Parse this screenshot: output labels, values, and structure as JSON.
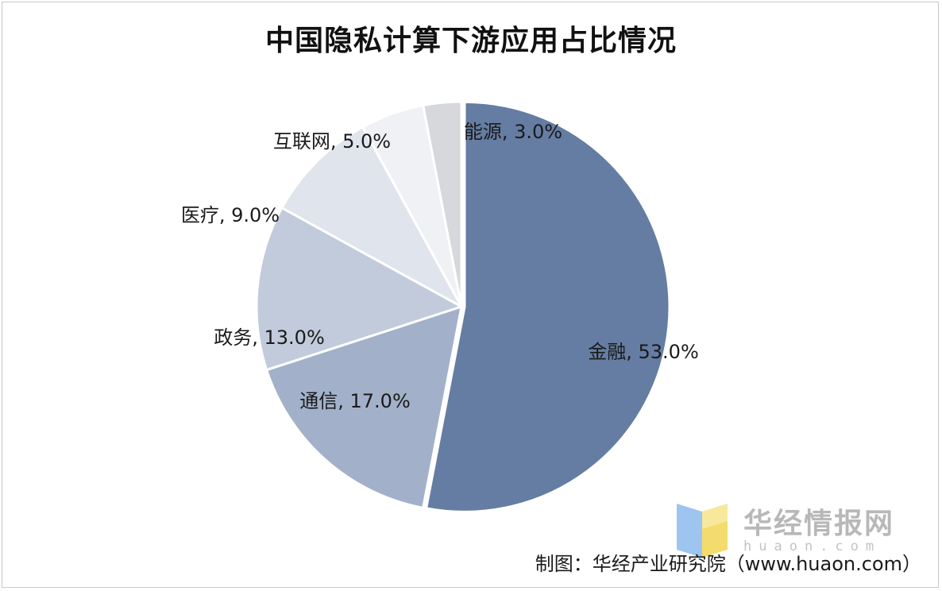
{
  "chart_data": {
    "type": "pie",
    "title": "中国隐私计算下游应用占比情况",
    "slices": [
      {
        "label": "金融",
        "value": 53.0,
        "text": "金融, 53.0%",
        "color": "#657da3"
      },
      {
        "label": "通信",
        "value": 17.0,
        "text": "通信, 17.0%",
        "color": "#a2b1c9"
      },
      {
        "label": "政务",
        "value": 13.0,
        "text": "政务, 13.0%",
        "color": "#c1cbdb"
      },
      {
        "label": "医疗",
        "value": 9.0,
        "text": "医疗, 9.0%",
        "color": "#dfe4ed"
      },
      {
        "label": "互联网",
        "value": 5.0,
        "text": "互联网, 5.0%",
        "color": "#eff1f5"
      },
      {
        "label": "能源",
        "value": 3.0,
        "text": "能源, 3.0%",
        "color": "#d7d8db"
      }
    ],
    "legend": "none"
  },
  "watermark": {
    "name": "华经情报网",
    "url": "huaon.com",
    "logo_icon": "huajing-logo-icon"
  },
  "source": "制图：华经产业研究院（www.huaon.com）"
}
